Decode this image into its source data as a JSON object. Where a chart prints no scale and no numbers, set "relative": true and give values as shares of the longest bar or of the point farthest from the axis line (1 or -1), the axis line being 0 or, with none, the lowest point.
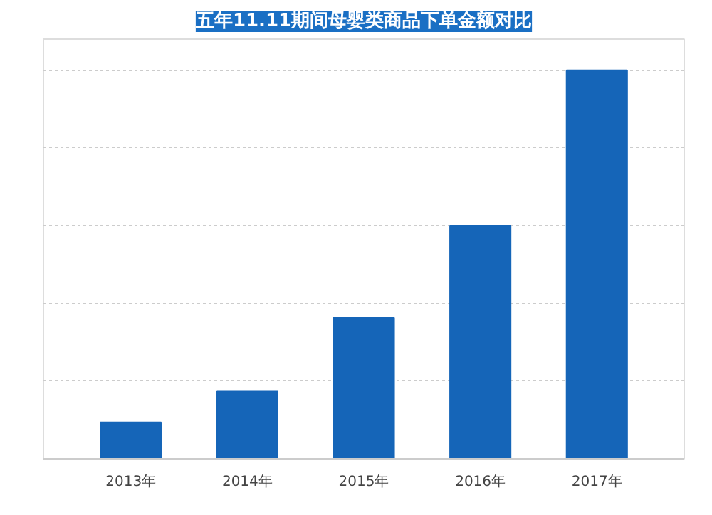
{
  "chart_data": {
    "type": "bar",
    "title": "五年11.11期间母婴类商品下单金额对比",
    "categories": [
      "2013年",
      "2014年",
      "2015年",
      "2016年",
      "2017年"
    ],
    "values": [
      0.094,
      0.175,
      0.363,
      0.599,
      1.0
    ],
    "color": "#1565b8",
    "relative": true,
    "grid": "y"
  }
}
